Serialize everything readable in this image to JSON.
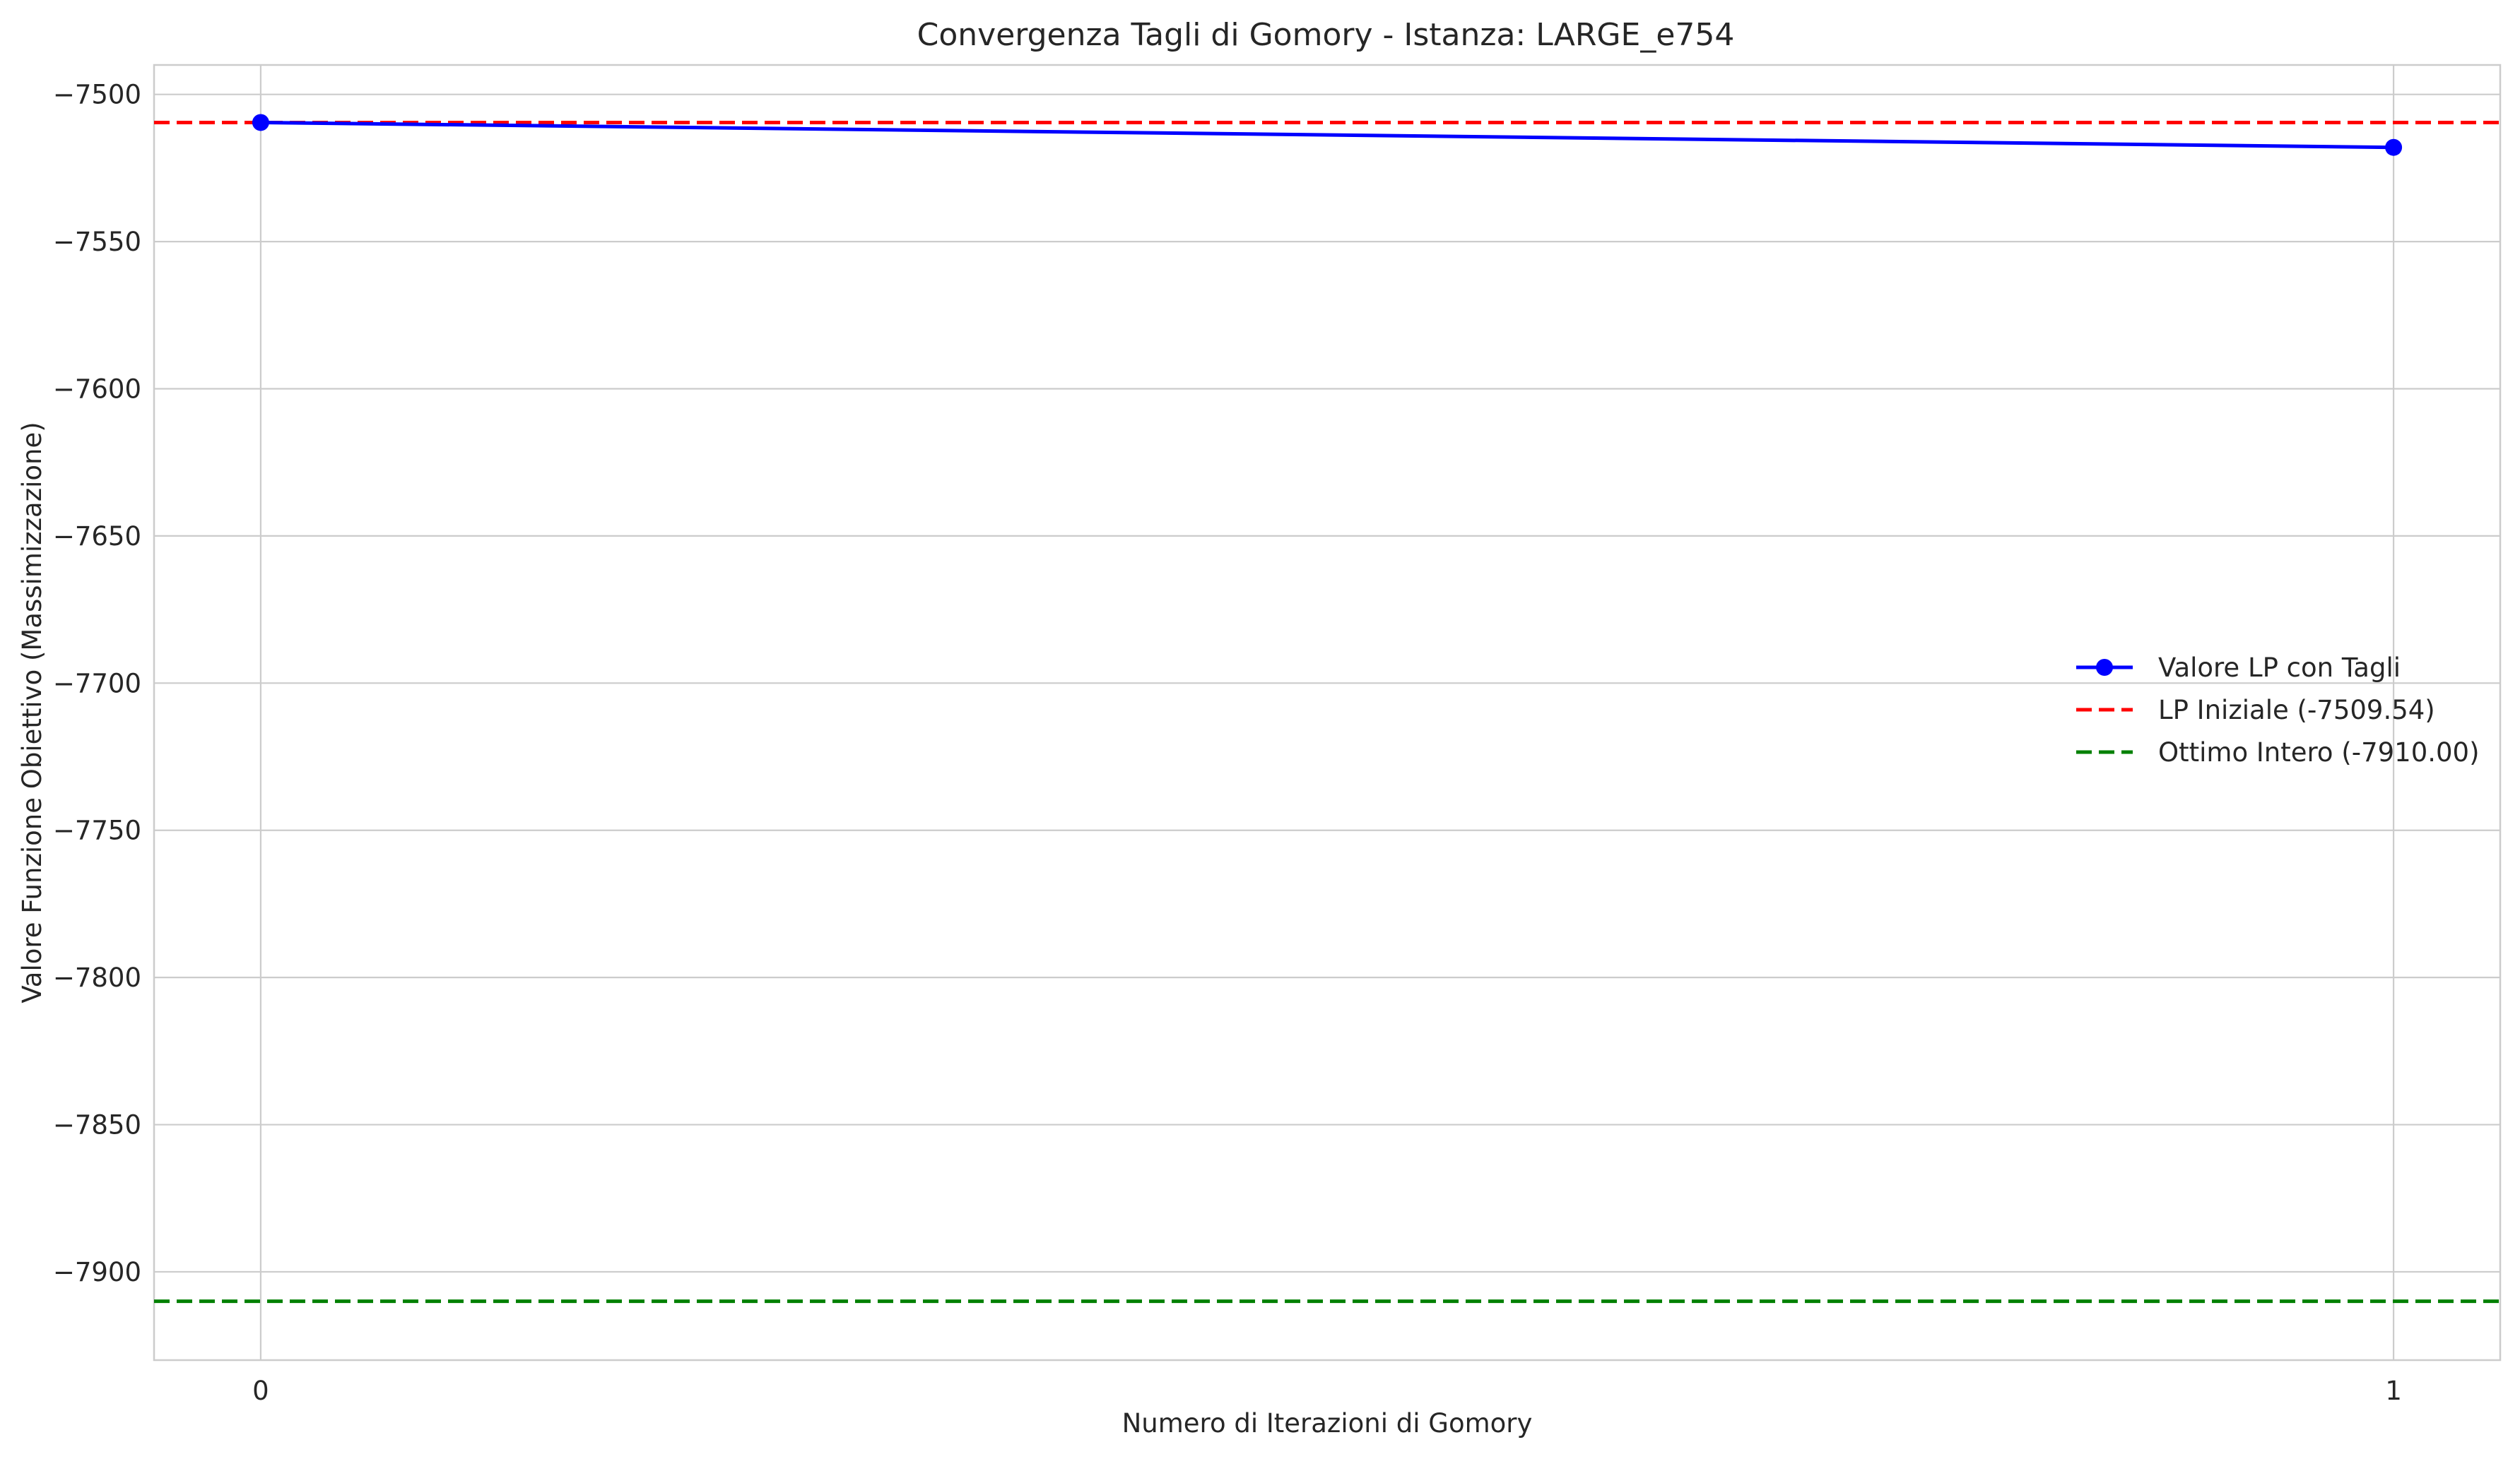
{
  "chart_data": {
    "type": "line",
    "title": "Convergenza Tagli di Gomory - Istanza: LARGE_e754",
    "xlabel": "Numero di Iterazioni di Gomory",
    "ylabel": "Valore Funzione Obiettivo (Massimizzazione)",
    "x": [
      0,
      1
    ],
    "x_ticks": [
      0,
      1
    ],
    "x_tick_labels": [
      "0",
      "1"
    ],
    "xlim": [
      -0.05,
      1.05
    ],
    "ylim": [
      -7930,
      -7490
    ],
    "y_ticks": [
      -7500,
      -7550,
      -7600,
      -7650,
      -7700,
      -7750,
      -7800,
      -7850,
      -7900
    ],
    "y_tick_labels": [
      "−7500",
      "−7550",
      "−7600",
      "−7650",
      "−7700",
      "−7750",
      "−7800",
      "−7850",
      "−7900"
    ],
    "grid": true,
    "legend_position": "center-right",
    "series": [
      {
        "name": "Valore LP con Tagli",
        "style": "solid-with-markers",
        "color": "#0000ff",
        "values": [
          -7509.54,
          -7518
        ]
      }
    ],
    "reference_lines": [
      {
        "name": "LP Iniziale (-7509.54)",
        "y": -7509.54,
        "style": "dashed",
        "color": "#ff0000"
      },
      {
        "name": "Ottimo Intero (-7910.00)",
        "y": -7910.0,
        "style": "dashed",
        "color": "#008000"
      }
    ]
  }
}
